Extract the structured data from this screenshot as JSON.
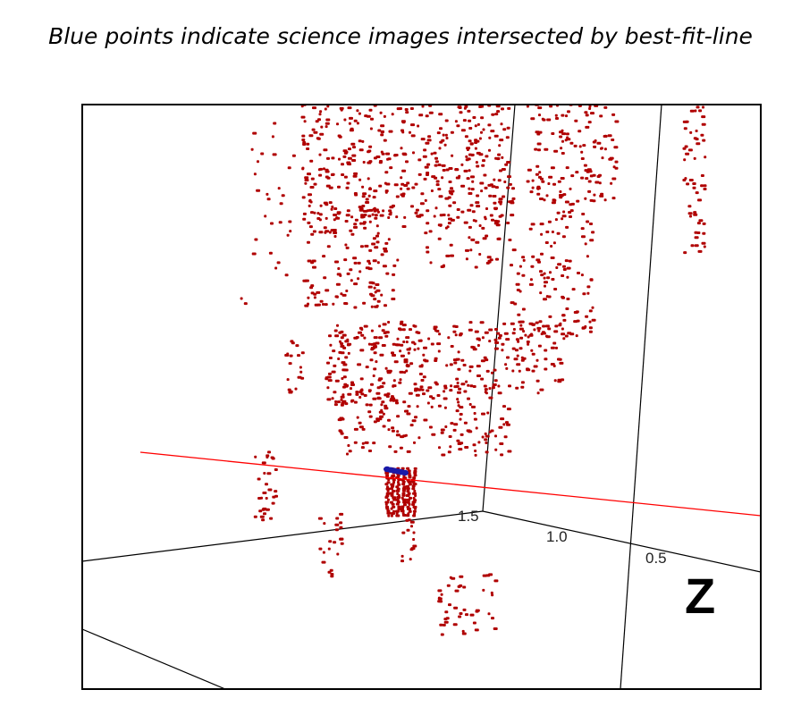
{
  "title": "Blue points indicate science images intersected by best-fit-line",
  "chart_data": {
    "type": "scatter",
    "projection": "3d",
    "title": "Blue points indicate science images intersected by best-fit-line",
    "axes": {
      "z": {
        "label": "Z",
        "ticks": [
          "1.5",
          "1.0",
          "0.5"
        ]
      }
    },
    "series": [
      {
        "color": "#b00000",
        "role": "science images"
      },
      {
        "color": "#1a1aa8",
        "role": "images intersected by best-fit-line"
      }
    ],
    "fit_line_color": "#ff0000",
    "box_color": "#000000"
  }
}
